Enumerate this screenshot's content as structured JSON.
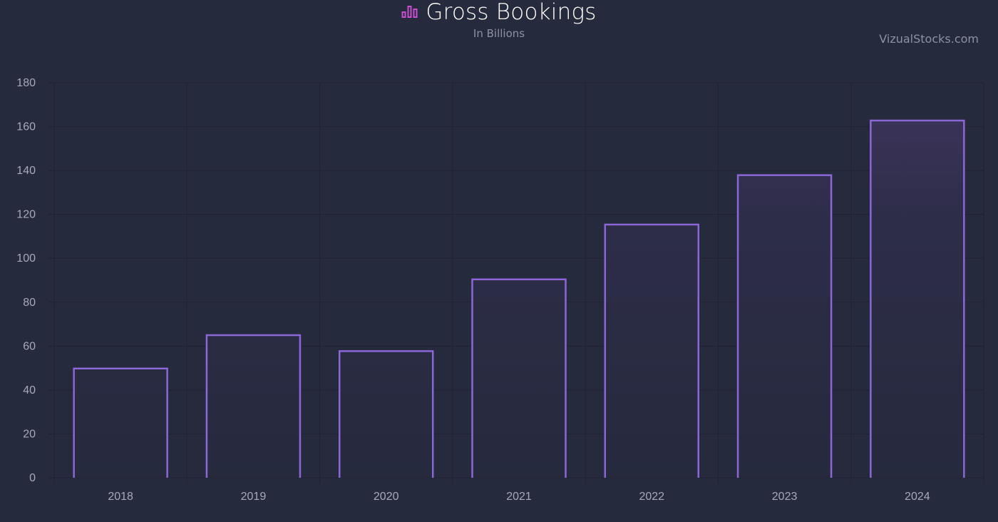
{
  "chart_data": {
    "type": "bar",
    "title": "Gross Bookings",
    "subtitle": "In Billions",
    "watermark": "VizualStocks.com",
    "icon": "bar-chart-icon",
    "categories": [
      "2018",
      "2019",
      "2020",
      "2021",
      "2022",
      "2023",
      "2024"
    ],
    "values": [
      49.8,
      65.0,
      57.7,
      90.4,
      115.4,
      137.9,
      162.8
    ],
    "ylim": [
      0,
      180
    ],
    "yticks": [
      0,
      20,
      40,
      60,
      80,
      100,
      120,
      140,
      160,
      180
    ],
    "grid": true,
    "legend": "none",
    "colors": {
      "background": "#262a3d",
      "bar_stroke": "#8b67d8",
      "bar_fill_top": "#3a3358",
      "grid": "#1f2233",
      "icon": "#c84fd0"
    }
  }
}
